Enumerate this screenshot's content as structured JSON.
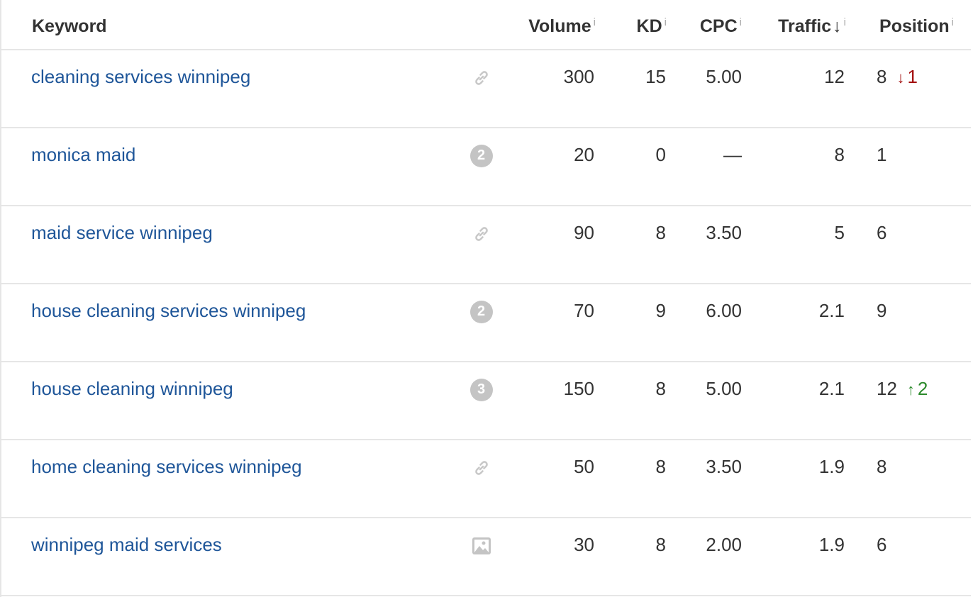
{
  "headers": {
    "keyword": "Keyword",
    "volume": "Volume",
    "kd": "KD",
    "cpc": "CPC",
    "traffic": "Traffic",
    "position": "Position",
    "info_glyph": "i",
    "sort_glyph": "↓"
  },
  "rows": [
    {
      "keyword": "cleaning services winnipeg",
      "serp": "link",
      "volume": "300",
      "kd": "15",
      "cpc": "5.00",
      "traffic": "12",
      "position": "8",
      "change_dir": "down",
      "change_arrow": "↓",
      "change": "1"
    },
    {
      "keyword": "monica maid",
      "serp": "badge",
      "serp_count": "2",
      "volume": "20",
      "kd": "0",
      "cpc": "—",
      "traffic": "8",
      "position": "1"
    },
    {
      "keyword": "maid service winnipeg",
      "serp": "link",
      "volume": "90",
      "kd": "8",
      "cpc": "3.50",
      "traffic": "5",
      "position": "6"
    },
    {
      "keyword": "house cleaning services winnipeg",
      "serp": "badge",
      "serp_count": "2",
      "volume": "70",
      "kd": "9",
      "cpc": "6.00",
      "traffic": "2.1",
      "position": "9"
    },
    {
      "keyword": "house cleaning winnipeg",
      "serp": "badge",
      "serp_count": "3",
      "volume": "150",
      "kd": "8",
      "cpc": "5.00",
      "traffic": "2.1",
      "position": "12",
      "change_dir": "up",
      "change_arrow": "↑",
      "change": "2"
    },
    {
      "keyword": "home cleaning services winnipeg",
      "serp": "link",
      "volume": "50",
      "kd": "8",
      "cpc": "3.50",
      "traffic": "1.9",
      "position": "8"
    },
    {
      "keyword": "winnipeg maid services",
      "serp": "image",
      "volume": "30",
      "kd": "8",
      "cpc": "2.00",
      "traffic": "1.9",
      "position": "6"
    }
  ]
}
